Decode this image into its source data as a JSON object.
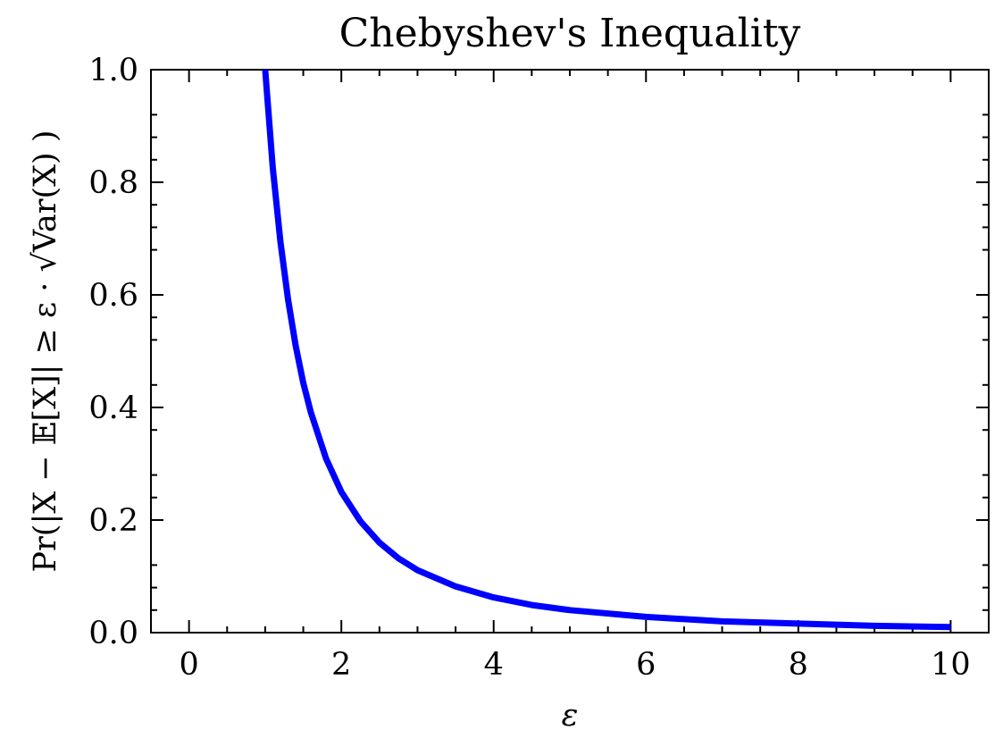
{
  "chart_data": {
    "type": "line",
    "title": "Chebyshev's Inequality",
    "xlabel": "ε",
    "ylabel": "Pr(|X − 𝔼[X]| ≥ ε · √Var(X) )",
    "xlim": [
      -0.5,
      10.5
    ],
    "ylim": [
      0.0,
      1.0
    ],
    "grid": false,
    "x_ticks": [
      0,
      2,
      4,
      6,
      8,
      10
    ],
    "x_tick_labels": [
      "0",
      "2",
      "4",
      "6",
      "8",
      "10"
    ],
    "y_ticks": [
      0.0,
      0.2,
      0.4,
      0.6,
      0.8,
      1.0
    ],
    "y_tick_labels": [
      "0.0",
      "0.2",
      "0.4",
      "0.6",
      "0.8",
      "1.0"
    ],
    "series": [
      {
        "color": "#0000ff",
        "x": [
          1.0,
          1.1,
          1.2,
          1.3,
          1.4,
          1.5,
          1.6,
          1.8,
          2.0,
          2.25,
          2.5,
          2.75,
          3.0,
          3.5,
          4.0,
          4.5,
          5.0,
          6.0,
          7.0,
          8.0,
          9.0,
          10.0
        ],
        "y": [
          1.0,
          0.826,
          0.694,
          0.592,
          0.51,
          0.444,
          0.391,
          0.309,
          0.25,
          0.198,
          0.16,
          0.132,
          0.111,
          0.082,
          0.0625,
          0.049,
          0.04,
          0.028,
          0.02,
          0.016,
          0.012,
          0.01
        ]
      }
    ]
  }
}
